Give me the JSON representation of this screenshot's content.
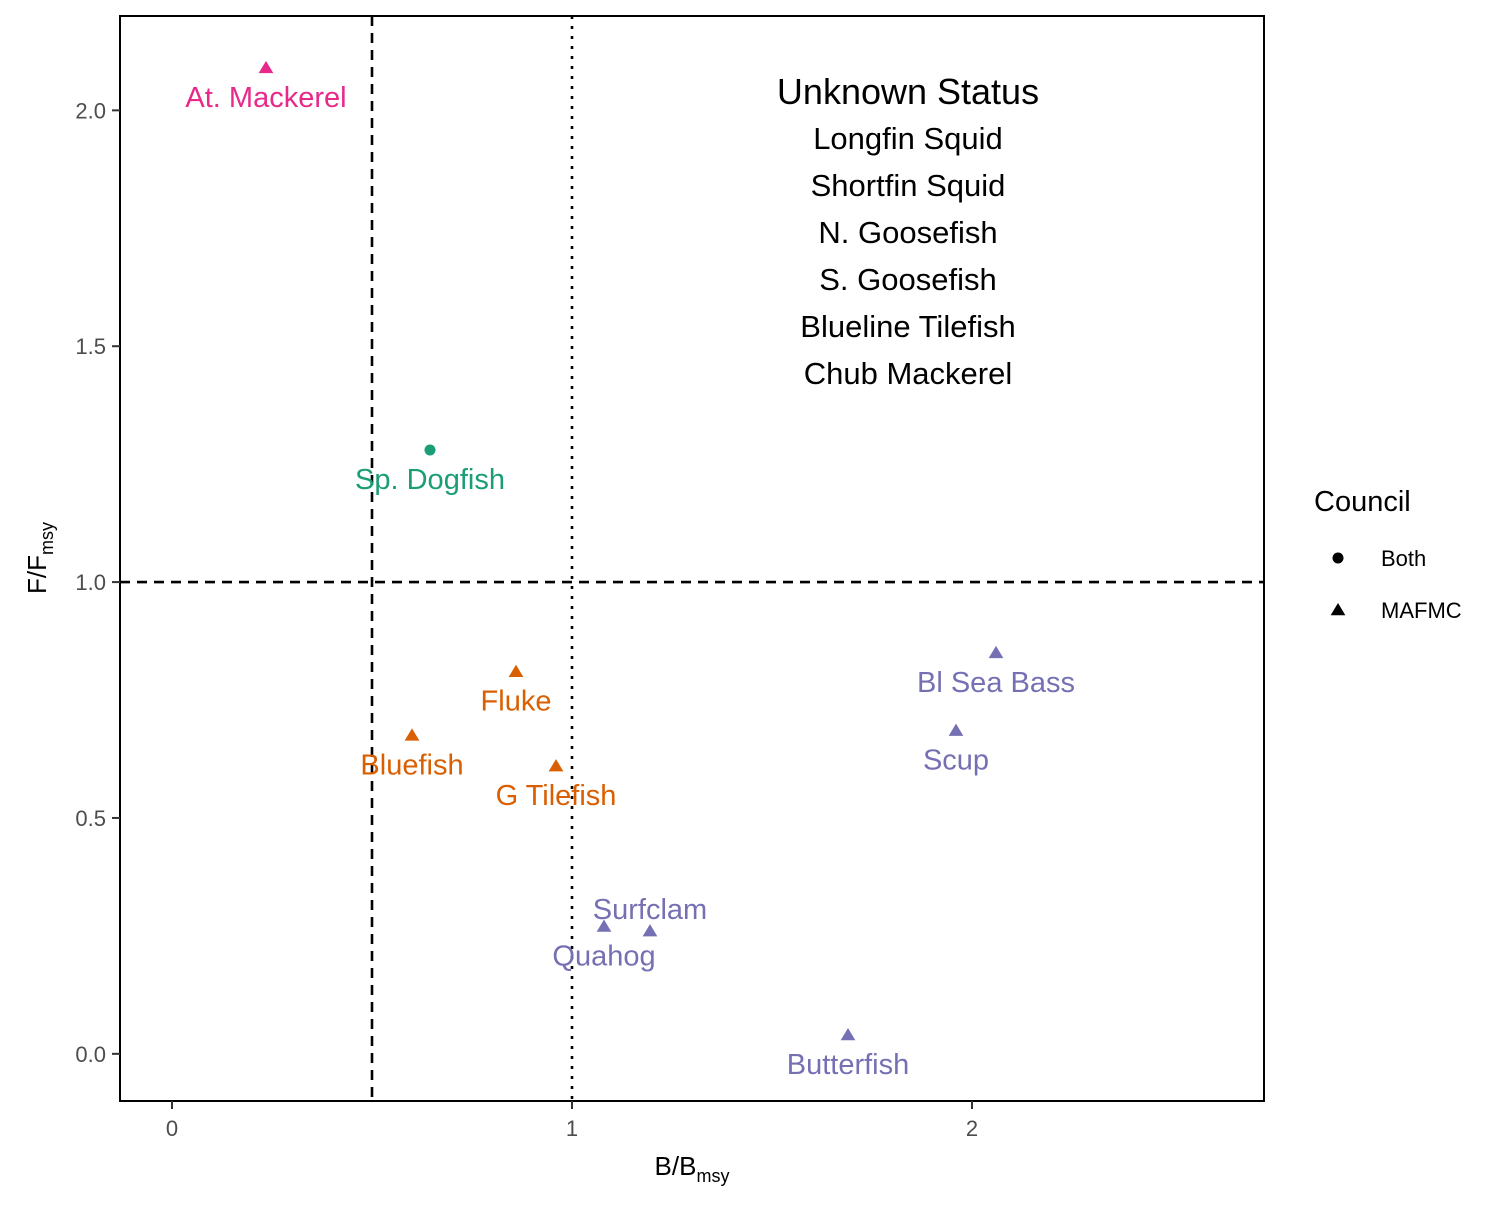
{
  "chart_data": {
    "type": "scatter",
    "xlabel": {
      "main": "B/B",
      "sub": "msy"
    },
    "ylabel": {
      "main": "F/F",
      "sub": "msy"
    },
    "xlim": [
      -0.13,
      2.73
    ],
    "ylim": [
      -0.1,
      2.2
    ],
    "xticks": [
      {
        "value": 0,
        "label": "0"
      },
      {
        "value": 1,
        "label": "1"
      },
      {
        "value": 2,
        "label": "2"
      }
    ],
    "yticks": [
      {
        "value": 0.0,
        "label": "0.0"
      },
      {
        "value": 0.5,
        "label": "0.5"
      },
      {
        "value": 1.0,
        "label": "1.0"
      },
      {
        "value": 1.5,
        "label": "1.5"
      },
      {
        "value": 2.0,
        "label": "2.0"
      }
    ],
    "grid": false,
    "reference_lines": [
      {
        "axis": "x",
        "value": 0.5,
        "style": "dashed"
      },
      {
        "axis": "x",
        "value": 1.0,
        "style": "dotted"
      },
      {
        "axis": "y",
        "value": 1.0,
        "style": "dashed"
      }
    ],
    "points": [
      {
        "label": "At. Mackerel",
        "x": 0.235,
        "y": 2.09,
        "council": "MAFMC",
        "color": "#E7298A",
        "label_pos": "below"
      },
      {
        "label": "Sp. Dogfish",
        "x": 0.645,
        "y": 1.28,
        "council": "Both",
        "color": "#1B9E77",
        "label_pos": "below"
      },
      {
        "label": "Fluke",
        "x": 0.86,
        "y": 0.81,
        "council": "MAFMC",
        "color": "#D95F02",
        "label_pos": "below"
      },
      {
        "label": "Bluefish",
        "x": 0.6,
        "y": 0.675,
        "council": "MAFMC",
        "color": "#D95F02",
        "label_pos": "below"
      },
      {
        "label": "G Tilefish",
        "x": 0.96,
        "y": 0.61,
        "council": "MAFMC",
        "color": "#D95F02",
        "label_pos": "below"
      },
      {
        "label": "Bl Sea Bass",
        "x": 2.06,
        "y": 0.85,
        "council": "MAFMC",
        "color": "#7570B3",
        "label_pos": "below"
      },
      {
        "label": "Scup",
        "x": 1.96,
        "y": 0.685,
        "council": "MAFMC",
        "color": "#7570B3",
        "label_pos": "below"
      },
      {
        "label": "Surfclam",
        "x": 1.195,
        "y": 0.26,
        "council": "MAFMC",
        "color": "#7570B3",
        "label_pos": "above"
      },
      {
        "label": "Quahog",
        "x": 1.08,
        "y": 0.27,
        "council": "MAFMC",
        "color": "#7570B3",
        "label_pos": "below"
      },
      {
        "label": "Butterfish",
        "x": 1.69,
        "y": 0.04,
        "council": "MAFMC",
        "color": "#7570B3",
        "label_pos": "below"
      }
    ],
    "annotation": {
      "title": "Unknown Status",
      "items": [
        "Longfin Squid",
        "Shortfin Squid",
        "N. Goosefish",
        "S. Goosefish",
        "Blueline Tilefish",
        "Chub Mackerel"
      ]
    },
    "legend": {
      "title": "Council",
      "placement": "right",
      "entries": [
        {
          "label": "Both",
          "shape": "circle"
        },
        {
          "label": "MAFMC",
          "shape": "triangle"
        }
      ]
    }
  }
}
